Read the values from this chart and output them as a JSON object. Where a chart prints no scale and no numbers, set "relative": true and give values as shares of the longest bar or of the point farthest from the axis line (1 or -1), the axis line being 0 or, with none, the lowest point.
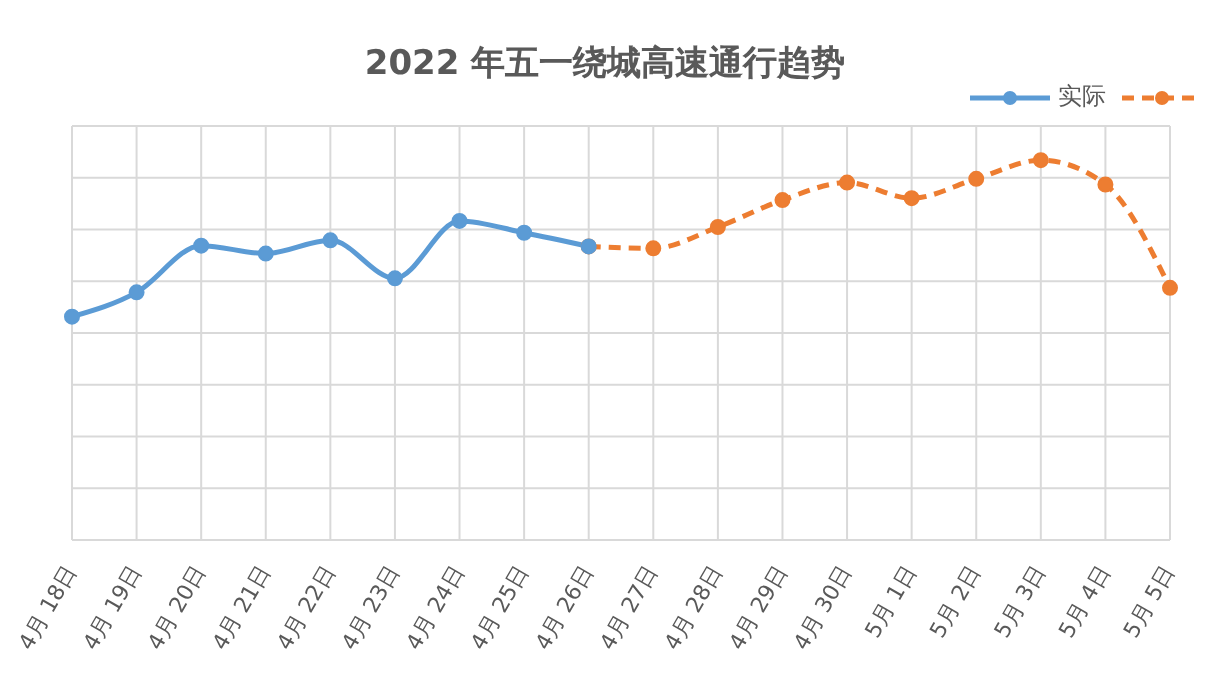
{
  "chart_data": {
    "type": "line",
    "title": "2022 年五一绕城高速通行趋势",
    "relative": true,
    "categories": [
      "4月 18日",
      "4月 19日",
      "4月 20日",
      "4月 21日",
      "4月 22日",
      "4月 23日",
      "4月 24日",
      "4月 25日",
      "4月 26日",
      "4月 27日",
      "4月 28日",
      "4月 29日",
      "4月 30日",
      "5月 1日",
      "5月 2日",
      "5月 3日",
      "5月 4日",
      "5月 5日"
    ],
    "series": [
      {
        "name": "实际",
        "color": "#5b9bd5",
        "line_style": "solid",
        "values": [
          0.588,
          0.652,
          0.775,
          0.754,
          0.789,
          0.689,
          0.84,
          0.809,
          0.773,
          null,
          null,
          null,
          null,
          null,
          null,
          null,
          null,
          null
        ]
      },
      {
        "color": "#ed7d31",
        "line_style": "dashed",
        "values": [
          null,
          null,
          null,
          null,
          null,
          null,
          null,
          null,
          0.773,
          0.768,
          0.824,
          0.895,
          0.941,
          0.9,
          0.951,
          1,
          0.936,
          0.664
        ]
      }
    ],
    "marker": "circle",
    "grid": true,
    "legend": "top right"
  }
}
